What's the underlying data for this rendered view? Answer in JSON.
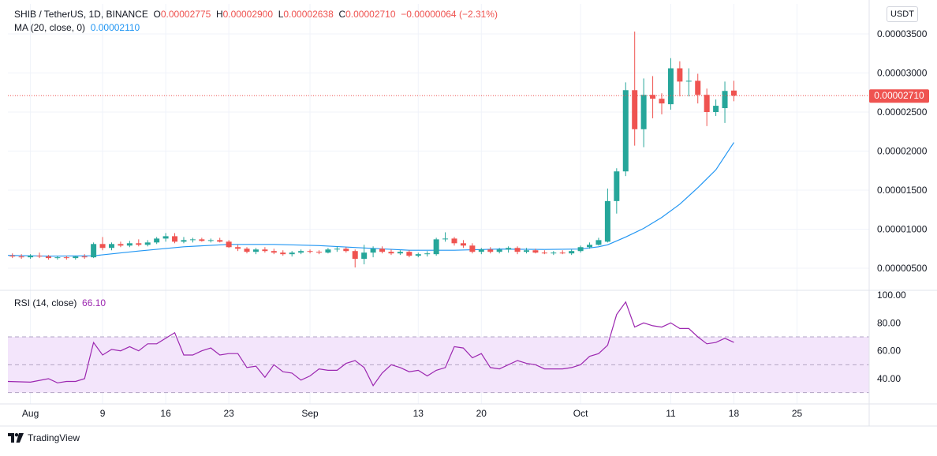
{
  "header": {
    "symbol": "SHIB / TetherUS, 1D, BINANCE",
    "o_label": "O",
    "o_value": "0.00002775",
    "h_label": "H",
    "h_value": "0.00002900",
    "l_label": "L",
    "l_value": "0.00002638",
    "c_label": "C",
    "c_value": "0.00002710",
    "change": "−0.00000064 (−2.31%)"
  },
  "ma_legend": {
    "label": "MA (20, close, 0)",
    "value": "0.00002110"
  },
  "rsi_legend": {
    "label": "RSI (14, close)",
    "value": "66.10"
  },
  "currency": "USDT",
  "last_price_label": "0.00002710",
  "logo_text": "TradingView",
  "colors": {
    "up": "#26a69a",
    "down": "#ef5350",
    "ma": "#2196f3",
    "rsi": "#9c27b0",
    "rsi_band": "#f3e5fb"
  },
  "chart_data": [
    {
      "type": "candlestick",
      "title": "SHIB / TetherUS, 1D, BINANCE",
      "y_ticks": [
        "0.00003500",
        "0.00003000",
        "0.00002500",
        "0.00002000",
        "0.00001500",
        "0.00001000",
        "0.00000500"
      ],
      "ylim": [
        3.3e-06,
        3.7e-05
      ],
      "x_ticks": [
        {
          "day": 0,
          "label": "Aug"
        },
        {
          "day": 8,
          "label": "9"
        },
        {
          "day": 15,
          "label": "16"
        },
        {
          "day": 22,
          "label": "23"
        },
        {
          "day": 31,
          "label": "Sep"
        },
        {
          "day": 43,
          "label": "13"
        },
        {
          "day": 50,
          "label": "20"
        },
        {
          "day": 61,
          "label": "Oct"
        },
        {
          "day": 71,
          "label": "11"
        },
        {
          "day": 78,
          "label": "18"
        },
        {
          "day": 85,
          "label": "25"
        }
      ],
      "xlim": [
        -2.5,
        93
      ],
      "grid": true,
      "last_price": 2.71e-05,
      "candles": [
        {
          "d": -2,
          "o": 6.6e-06,
          "h": 6.9e-06,
          "l": 6.3e-06,
          "c": 6.5e-06
        },
        {
          "d": -1,
          "o": 6.5e-06,
          "h": 6.8e-06,
          "l": 6.2e-06,
          "c": 6.4e-06
        },
        {
          "d": 0,
          "o": 6.4e-06,
          "h": 6.8e-06,
          "l": 6.2e-06,
          "c": 6.6e-06
        },
        {
          "d": 1,
          "o": 6.6e-06,
          "h": 7e-06,
          "l": 6.3e-06,
          "c": 6.5e-06
        },
        {
          "d": 2,
          "o": 6.5e-06,
          "h": 6.7e-06,
          "l": 6.1e-06,
          "c": 6.3e-06
        },
        {
          "d": 3,
          "o": 6.3e-06,
          "h": 6.6e-06,
          "l": 6.1e-06,
          "c": 6.4e-06
        },
        {
          "d": 4,
          "o": 6.4e-06,
          "h": 6.6e-06,
          "l": 6.1e-06,
          "c": 6.3e-06
        },
        {
          "d": 5,
          "o": 6.3e-06,
          "h": 6.6e-06,
          "l": 6.1e-06,
          "c": 6.5e-06
        },
        {
          "d": 6,
          "o": 6.5e-06,
          "h": 6.8e-06,
          "l": 6.2e-06,
          "c": 6.4e-06
        },
        {
          "d": 7,
          "o": 6.4e-06,
          "h": 8.3e-06,
          "l": 6.3e-06,
          "c": 8.1e-06
        },
        {
          "d": 8,
          "o": 8.1e-06,
          "h": 9e-06,
          "l": 7.3e-06,
          "c": 7.6e-06
        },
        {
          "d": 9,
          "o": 7.6e-06,
          "h": 8.3e-06,
          "l": 7.3e-06,
          "c": 8.1e-06
        },
        {
          "d": 10,
          "o": 8.1e-06,
          "h": 8.4e-06,
          "l": 7.7e-06,
          "c": 7.9e-06
        },
        {
          "d": 11,
          "o": 7.9e-06,
          "h": 8.5e-06,
          "l": 7.7e-06,
          "c": 8.2e-06
        },
        {
          "d": 12,
          "o": 8.2e-06,
          "h": 8.7e-06,
          "l": 7.8e-06,
          "c": 8e-06
        },
        {
          "d": 13,
          "o": 8e-06,
          "h": 8.6e-06,
          "l": 7.8e-06,
          "c": 8.3e-06
        },
        {
          "d": 14,
          "o": 8.3e-06,
          "h": 9e-06,
          "l": 8.1e-06,
          "c": 8.8e-06
        },
        {
          "d": 15,
          "o": 8.8e-06,
          "h": 9.5e-06,
          "l": 8.4e-06,
          "c": 9.1e-06
        },
        {
          "d": 16,
          "o": 9.1e-06,
          "h": 9.5e-06,
          "l": 8.2e-06,
          "c": 8.4e-06
        },
        {
          "d": 17,
          "o": 8.4e-06,
          "h": 9e-06,
          "l": 8.2e-06,
          "c": 8.6e-06
        },
        {
          "d": 18,
          "o": 8.6e-06,
          "h": 8.9e-06,
          "l": 8.3e-06,
          "c": 8.7e-06
        },
        {
          "d": 19,
          "o": 8.7e-06,
          "h": 8.9e-06,
          "l": 8.4e-06,
          "c": 8.5e-06
        },
        {
          "d": 20,
          "o": 8.5e-06,
          "h": 8.8e-06,
          "l": 8.3e-06,
          "c": 8.6e-06
        },
        {
          "d": 21,
          "o": 8.6e-06,
          "h": 8.9e-06,
          "l": 8.3e-06,
          "c": 8.4e-06
        },
        {
          "d": 22,
          "o": 8.4e-06,
          "h": 8.6e-06,
          "l": 7.6e-06,
          "c": 7.7e-06
        },
        {
          "d": 23,
          "o": 7.7e-06,
          "h": 8e-06,
          "l": 7.2e-06,
          "c": 7.5e-06
        },
        {
          "d": 24,
          "o": 7.5e-06,
          "h": 7.7e-06,
          "l": 6.9e-06,
          "c": 7.1e-06
        },
        {
          "d": 25,
          "o": 7.1e-06,
          "h": 7.6e-06,
          "l": 6.8e-06,
          "c": 7.4e-06
        },
        {
          "d": 26,
          "o": 7.4e-06,
          "h": 7.7e-06,
          "l": 7e-06,
          "c": 7.2e-06
        },
        {
          "d": 27,
          "o": 7.2e-06,
          "h": 7.5e-06,
          "l": 6.8e-06,
          "c": 7e-06
        },
        {
          "d": 28,
          "o": 7e-06,
          "h": 7.3e-06,
          "l": 6.6e-06,
          "c": 6.8e-06
        },
        {
          "d": 29,
          "o": 6.8e-06,
          "h": 7.2e-06,
          "l": 6.5e-06,
          "c": 7e-06
        },
        {
          "d": 30,
          "o": 7e-06,
          "h": 7.4e-06,
          "l": 6.8e-06,
          "c": 7.2e-06
        },
        {
          "d": 31,
          "o": 7.2e-06,
          "h": 7.4e-06,
          "l": 6.9e-06,
          "c": 7.1e-06
        },
        {
          "d": 32,
          "o": 7.1e-06,
          "h": 7.3e-06,
          "l": 6.8e-06,
          "c": 7e-06
        },
        {
          "d": 33,
          "o": 7e-06,
          "h": 7.6e-06,
          "l": 6.9e-06,
          "c": 7.4e-06
        },
        {
          "d": 34,
          "o": 7.4e-06,
          "h": 7.8e-06,
          "l": 7.1e-06,
          "c": 7.5e-06
        },
        {
          "d": 35,
          "o": 7.5e-06,
          "h": 7.7e-06,
          "l": 7e-06,
          "c": 7.2e-06
        },
        {
          "d": 36,
          "o": 7.2e-06,
          "h": 7.4e-06,
          "l": 5.1e-06,
          "c": 6.2e-06
        },
        {
          "d": 37,
          "o": 6.2e-06,
          "h": 8e-06,
          "l": 5.5e-06,
          "c": 7e-06
        },
        {
          "d": 38,
          "o": 7e-06,
          "h": 7.8e-06,
          "l": 6.4e-06,
          "c": 7.5e-06
        },
        {
          "d": 39,
          "o": 7.5e-06,
          "h": 7.8e-06,
          "l": 6.9e-06,
          "c": 7.1e-06
        },
        {
          "d": 40,
          "o": 7.1e-06,
          "h": 7.4e-06,
          "l": 6.7e-06,
          "c": 6.9e-06
        },
        {
          "d": 41,
          "o": 6.9e-06,
          "h": 7.3e-06,
          "l": 6.7e-06,
          "c": 7.1e-06
        },
        {
          "d": 42,
          "o": 7.1e-06,
          "h": 7.3e-06,
          "l": 6.4e-06,
          "c": 6.6e-06
        },
        {
          "d": 43,
          "o": 6.6e-06,
          "h": 7e-06,
          "l": 6.4e-06,
          "c": 6.8e-06
        },
        {
          "d": 44,
          "o": 6.8e-06,
          "h": 7.2e-06,
          "l": 6.5e-06,
          "c": 6.9e-06
        },
        {
          "d": 45,
          "o": 6.8e-06,
          "h": 8.9e-06,
          "l": 6.6e-06,
          "c": 8.7e-06
        },
        {
          "d": 46,
          "o": 8.7e-06,
          "h": 9.6e-06,
          "l": 8.4e-06,
          "c": 8.8e-06
        },
        {
          "d": 47,
          "o": 8.8e-06,
          "h": 9e-06,
          "l": 7.9e-06,
          "c": 8.2e-06
        },
        {
          "d": 48,
          "o": 8.2e-06,
          "h": 8.6e-06,
          "l": 7.6e-06,
          "c": 7.9e-06
        },
        {
          "d": 49,
          "o": 7.9e-06,
          "h": 8.2e-06,
          "l": 6.9e-06,
          "c": 7.1e-06
        },
        {
          "d": 50,
          "o": 7.1e-06,
          "h": 7.6e-06,
          "l": 6.8e-06,
          "c": 7.4e-06
        },
        {
          "d": 51,
          "o": 7.4e-06,
          "h": 7.7e-06,
          "l": 6.9e-06,
          "c": 7.1e-06
        },
        {
          "d": 52,
          "o": 7.1e-06,
          "h": 7.6e-06,
          "l": 6.9e-06,
          "c": 7.4e-06
        },
        {
          "d": 53,
          "o": 7.4e-06,
          "h": 7.8e-06,
          "l": 7e-06,
          "c": 7.6e-06
        },
        {
          "d": 54,
          "o": 7.6e-06,
          "h": 7.8e-06,
          "l": 6.8e-06,
          "c": 7.1e-06
        },
        {
          "d": 55,
          "o": 7.1e-06,
          "h": 7.6e-06,
          "l": 6.9e-06,
          "c": 7.3e-06
        },
        {
          "d": 56,
          "o": 7.3e-06,
          "h": 7.5e-06,
          "l": 6.9e-06,
          "c": 7e-06
        },
        {
          "d": 57,
          "o": 7e-06,
          "h": 7.3e-06,
          "l": 6.8e-06,
          "c": 6.9e-06
        },
        {
          "d": 58,
          "o": 6.9e-06,
          "h": 7.2e-06,
          "l": 6.7e-06,
          "c": 7e-06
        },
        {
          "d": 59,
          "o": 7e-06,
          "h": 7.3e-06,
          "l": 6.8e-06,
          "c": 6.9e-06
        },
        {
          "d": 60,
          "o": 6.9e-06,
          "h": 7.4e-06,
          "l": 6.7e-06,
          "c": 7.2e-06
        },
        {
          "d": 61,
          "o": 7.2e-06,
          "h": 7.9e-06,
          "l": 7e-06,
          "c": 7.7e-06
        },
        {
          "d": 62,
          "o": 7.7e-06,
          "h": 8.3e-06,
          "l": 7.5e-06,
          "c": 8e-06
        },
        {
          "d": 63,
          "o": 8e-06,
          "h": 8.9e-06,
          "l": 7.9e-06,
          "c": 8.6e-06
        },
        {
          "d": 64,
          "o": 8.4e-06,
          "h": 1.52e-05,
          "l": 8.3e-06,
          "c": 1.36e-05
        },
        {
          "d": 65,
          "o": 1.36e-05,
          "h": 1.78e-05,
          "l": 1.2e-05,
          "c": 1.74e-05
        },
        {
          "d": 66,
          "o": 1.74e-05,
          "h": 2.88e-05,
          "l": 1.68e-05,
          "c": 2.78e-05
        },
        {
          "d": 67,
          "o": 2.78e-05,
          "h": 3.53e-05,
          "l": 2.07e-05,
          "c": 2.28e-05
        },
        {
          "d": 68,
          "o": 2.28e-05,
          "h": 2.93e-05,
          "l": 2.05e-05,
          "c": 2.72e-05
        },
        {
          "d": 69,
          "o": 2.72e-05,
          "h": 2.96e-05,
          "l": 2.42e-05,
          "c": 2.67e-05
        },
        {
          "d": 70,
          "o": 2.67e-05,
          "h": 2.74e-05,
          "l": 2.47e-05,
          "c": 2.61e-05
        },
        {
          "d": 71,
          "o": 2.6e-05,
          "h": 3.19e-05,
          "l": 2.53e-05,
          "c": 3.06e-05
        },
        {
          "d": 72,
          "o": 3.06e-05,
          "h": 3.15e-05,
          "l": 2.7e-05,
          "c": 2.89e-05
        },
        {
          "d": 73,
          "o": 2.89e-05,
          "h": 3.06e-05,
          "l": 2.7e-05,
          "c": 2.9e-05
        },
        {
          "d": 74,
          "o": 2.9e-05,
          "h": 2.99e-05,
          "l": 2.61e-05,
          "c": 2.72e-05
        },
        {
          "d": 75,
          "o": 2.72e-05,
          "h": 2.8e-05,
          "l": 2.32e-05,
          "c": 2.5e-05
        },
        {
          "d": 76,
          "o": 2.5e-05,
          "h": 2.66e-05,
          "l": 2.45e-05,
          "c": 2.58e-05
        },
        {
          "d": 77,
          "o": 2.55e-05,
          "h": 2.89e-05,
          "l": 2.36e-05,
          "c": 2.77e-05
        },
        {
          "d": 78,
          "o": 2.775e-05,
          "h": 2.9e-05,
          "l": 2.638e-05,
          "c": 2.71e-05
        }
      ],
      "ma_series": {
        "name": "MA (20, close, 0)",
        "points": [
          [
            -2.5,
            6.65e-06
          ],
          [
            2,
            6.55e-06
          ],
          [
            7,
            6.6e-06
          ],
          [
            12,
            7.2e-06
          ],
          [
            17,
            7.75e-06
          ],
          [
            22,
            8.05e-06
          ],
          [
            27,
            8.05e-06
          ],
          [
            32,
            7.9e-06
          ],
          [
            37,
            7.6e-06
          ],
          [
            42,
            7.3e-06
          ],
          [
            47,
            7.3e-06
          ],
          [
            52,
            7.45e-06
          ],
          [
            57,
            7.4e-06
          ],
          [
            61,
            7.45e-06
          ],
          [
            63,
            7.75e-06
          ],
          [
            64,
            8e-06
          ],
          [
            66,
            9e-06
          ],
          [
            68,
            1.01e-05
          ],
          [
            70,
            1.15e-05
          ],
          [
            72,
            1.32e-05
          ],
          [
            74,
            1.53e-05
          ],
          [
            76,
            1.76e-05
          ],
          [
            78,
            2.11e-05
          ]
        ]
      }
    },
    {
      "type": "line",
      "title": "RSI (14, close)",
      "y_ticks": [
        "100.00",
        "80.00",
        "60.00",
        "40.00"
      ],
      "ylim": [
        28,
        101
      ],
      "band": [
        30,
        70
      ],
      "midline": 50,
      "series": [
        {
          "name": "RSI (14, close)",
          "x": [
            -2.5,
            0,
            2,
            3,
            4,
            5,
            6,
            7,
            8,
            9,
            10,
            11,
            12,
            13,
            14,
            15,
            16,
            17,
            18,
            19,
            20,
            21,
            22,
            23,
            24,
            25,
            26,
            27,
            28,
            29,
            30,
            31,
            32,
            33,
            34,
            35,
            36,
            37,
            38,
            39,
            40,
            41,
            42,
            43,
            44,
            45,
            46,
            47,
            48,
            49,
            50,
            51,
            52,
            53,
            54,
            55,
            56,
            57,
            58,
            59,
            60,
            61,
            62,
            63,
            64,
            65,
            66,
            67,
            68,
            69,
            70,
            71,
            72,
            73,
            74,
            75,
            76,
            77,
            78
          ],
          "values": [
            38,
            37.5,
            40,
            37,
            38,
            38,
            40,
            66,
            57,
            61,
            60,
            63,
            60,
            65,
            65,
            69,
            73,
            57,
            57,
            60,
            62,
            57,
            58,
            58,
            48,
            49,
            41,
            50,
            45,
            44,
            39,
            42,
            47,
            46,
            46,
            51,
            53,
            48,
            35,
            44,
            50,
            48,
            45,
            46,
            42,
            46,
            48,
            63,
            62,
            55,
            58,
            48,
            47,
            50,
            53,
            51,
            50,
            47,
            47,
            47,
            48,
            50,
            56,
            58,
            64,
            86,
            95,
            77,
            80,
            78,
            77,
            80,
            76,
            76,
            70,
            65,
            66,
            69,
            66.1
          ]
        }
      ]
    }
  ]
}
